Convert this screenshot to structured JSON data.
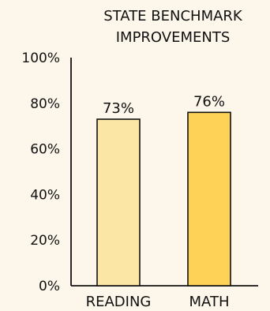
{
  "chart_data": {
    "type": "bar",
    "title_lines": [
      "STATE BENCHMARK",
      "IMPROVEMENTS"
    ],
    "categories": [
      "READING",
      "MATH"
    ],
    "values": [
      73,
      76
    ],
    "data_labels": [
      "73%",
      "76%"
    ],
    "bar_colors": [
      "#fce6a6",
      "#fdd257"
    ],
    "ylim": [
      0,
      100
    ],
    "yticks": [
      0,
      20,
      40,
      60,
      80,
      100
    ],
    "ytick_labels": [
      "0%",
      "20%",
      "40%",
      "60%",
      "80%",
      "100%"
    ],
    "grid": false,
    "legend": "none"
  },
  "colors": {
    "background": "#fdf6ea",
    "axis": "#111111",
    "bar_outline": "#111111"
  }
}
